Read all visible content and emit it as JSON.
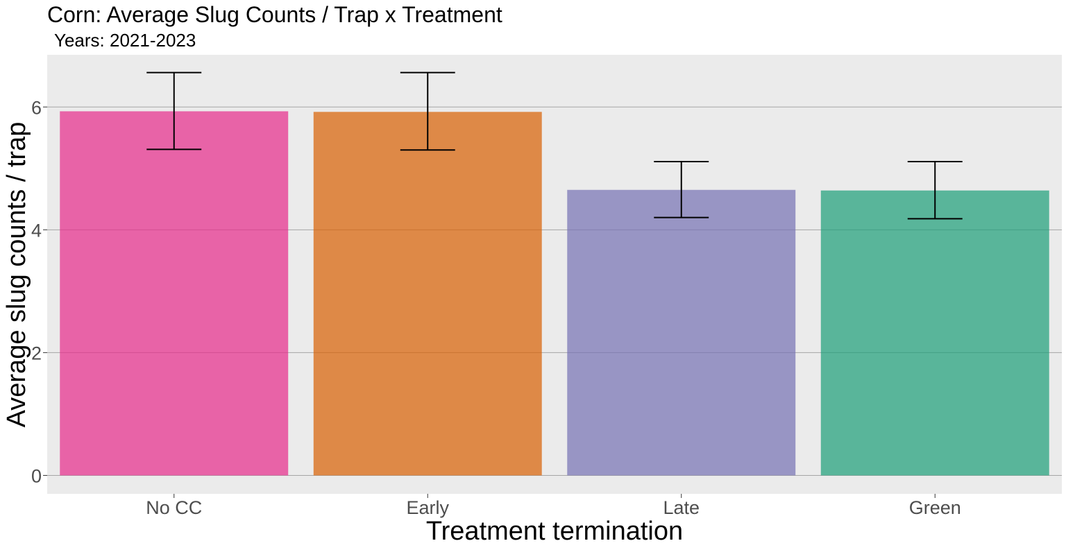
{
  "chart_data": {
    "type": "bar",
    "title": "Corn: Average Slug Counts / Trap x Treatment",
    "subtitle": "Years: 2021-2023",
    "xlabel": "Treatment termination",
    "ylabel": "Average slug counts / trap",
    "categories": [
      "No CC",
      "Early",
      "Late",
      "Green"
    ],
    "values": [
      5.93,
      5.92,
      4.65,
      4.64
    ],
    "error_low": [
      5.31,
      5.3,
      4.2,
      4.18
    ],
    "error_high": [
      6.56,
      6.56,
      5.11,
      5.11
    ],
    "colors": [
      "#E7298A",
      "#D95F02",
      "#7570B3",
      "#1B9E77"
    ],
    "ylim": [
      -0.3,
      6.85
    ],
    "yticks": [
      "0",
      "2",
      "4",
      "6"
    ],
    "grid": true,
    "panel_background": "#EBEBEB",
    "gridline_color": "#A6A6A6",
    "legend": "none"
  }
}
